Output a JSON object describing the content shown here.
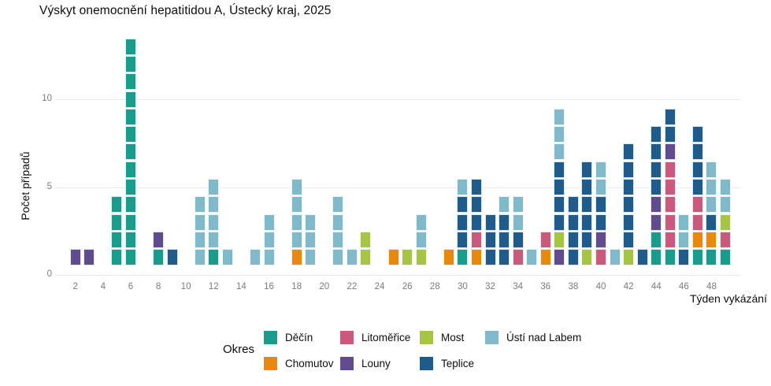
{
  "chart_data": {
    "type": "bar",
    "subtype": "stacked-unit-tile-epicurve",
    "title": "Výskyt onemocnění hepatitidou A, Ústecký kraj, 2025",
    "xlabel": "Týden vykázání",
    "ylabel": "Počet případů",
    "legend_title": "Okres",
    "y_ticks": [
      0,
      5,
      10
    ],
    "x_ticks": [
      2,
      4,
      6,
      8,
      10,
      12,
      14,
      16,
      18,
      20,
      22,
      24,
      26,
      28,
      30,
      32,
      34,
      36,
      38,
      40,
      42,
      44,
      46,
      48
    ],
    "x_range": [
      1,
      49
    ],
    "ylim": [
      0,
      13.5
    ],
    "grid": "horizontal-only",
    "legend_position": "bottom",
    "stack_order": [
      "Děčín",
      "Chomutov",
      "Litoměřice",
      "Louny",
      "Most",
      "Teplice",
      "Ústí nad Labem"
    ],
    "colors": {
      "Děčín": "#1a9c8c",
      "Chomutov": "#e8890b",
      "Litoměřice": "#ca5a7b",
      "Louny": "#614b8f",
      "Most": "#a6c544",
      "Teplice": "#1f5c8b",
      "Ústí nad Labem": "#7fb9ca"
    },
    "legend_rows": [
      [
        "Děčín",
        "Litoměřice",
        "Most",
        "Ústí nad Labem"
      ],
      [
        "Chomutov",
        "Louny",
        "Teplice"
      ]
    ],
    "weeks": [
      {
        "week": 2,
        "total": 1,
        "cases": {
          "Louny": 1
        }
      },
      {
        "week": 3,
        "total": 1,
        "cases": {
          "Louny": 1
        }
      },
      {
        "week": 5,
        "total": 4,
        "cases": {
          "Děčín": 4
        }
      },
      {
        "week": 6,
        "total": 13,
        "cases": {
          "Děčín": 13
        }
      },
      {
        "week": 8,
        "total": 2,
        "cases": {
          "Děčín": 1,
          "Louny": 1
        }
      },
      {
        "week": 9,
        "total": 1,
        "cases": {
          "Teplice": 1
        }
      },
      {
        "week": 11,
        "total": 4,
        "cases": {
          "Ústí nad Labem": 4
        }
      },
      {
        "week": 12,
        "total": 5,
        "cases": {
          "Děčín": 1,
          "Ústí nad Labem": 4
        }
      },
      {
        "week": 13,
        "total": 1,
        "cases": {
          "Ústí nad Labem": 1
        }
      },
      {
        "week": 15,
        "total": 1,
        "cases": {
          "Ústí nad Labem": 1
        }
      },
      {
        "week": 16,
        "total": 3,
        "cases": {
          "Ústí nad Labem": 3
        }
      },
      {
        "week": 18,
        "total": 5,
        "cases": {
          "Chomutov": 1,
          "Ústí nad Labem": 4
        }
      },
      {
        "week": 19,
        "total": 3,
        "cases": {
          "Ústí nad Labem": 3
        }
      },
      {
        "week": 21,
        "total": 4,
        "cases": {
          "Ústí nad Labem": 4
        }
      },
      {
        "week": 22,
        "total": 1,
        "cases": {
          "Ústí nad Labem": 1
        }
      },
      {
        "week": 23,
        "total": 2,
        "cases": {
          "Most": 2
        }
      },
      {
        "week": 25,
        "total": 1,
        "cases": {
          "Chomutov": 1
        }
      },
      {
        "week": 26,
        "total": 1,
        "cases": {
          "Most": 1
        }
      },
      {
        "week": 27,
        "total": 3,
        "cases": {
          "Most": 1,
          "Ústí nad Labem": 2
        }
      },
      {
        "week": 29,
        "total": 1,
        "cases": {
          "Chomutov": 1
        }
      },
      {
        "week": 30,
        "total": 5,
        "cases": {
          "Děčín": 1,
          "Teplice": 3,
          "Ústí nad Labem": 1
        }
      },
      {
        "week": 31,
        "total": 5,
        "cases": {
          "Chomutov": 1,
          "Litoměřice": 1,
          "Teplice": 3
        }
      },
      {
        "week": 32,
        "total": 3,
        "cases": {
          "Teplice": 3
        }
      },
      {
        "week": 33,
        "total": 4,
        "cases": {
          "Teplice": 3,
          "Ústí nad Labem": 1
        }
      },
      {
        "week": 34,
        "total": 4,
        "cases": {
          "Litoměřice": 1,
          "Teplice": 1,
          "Ústí nad Labem": 2
        }
      },
      {
        "week": 35,
        "total": 1,
        "cases": {
          "Ústí nad Labem": 1
        }
      },
      {
        "week": 36,
        "total": 2,
        "cases": {
          "Chomutov": 1,
          "Litoměřice": 1
        }
      },
      {
        "week": 37,
        "total": 9,
        "cases": {
          "Louny": 1,
          "Most": 1,
          "Teplice": 4,
          "Ústí nad Labem": 3
        }
      },
      {
        "week": 38,
        "total": 4,
        "cases": {
          "Teplice": 4
        }
      },
      {
        "week": 39,
        "total": 6,
        "cases": {
          "Most": 1,
          "Teplice": 5
        }
      },
      {
        "week": 40,
        "total": 6,
        "cases": {
          "Litoměřice": 1,
          "Louny": 1,
          "Teplice": 2,
          "Ústí nad Labem": 2
        }
      },
      {
        "week": 41,
        "total": 1,
        "cases": {
          "Ústí nad Labem": 1
        }
      },
      {
        "week": 42,
        "total": 7,
        "cases": {
          "Most": 1,
          "Teplice": 6
        }
      },
      {
        "week": 43,
        "total": 1,
        "cases": {
          "Teplice": 1
        }
      },
      {
        "week": 44,
        "total": 8,
        "cases": {
          "Děčín": 2,
          "Louny": 2,
          "Teplice": 4
        }
      },
      {
        "week": 45,
        "total": 9,
        "cases": {
          "Děčín": 1,
          "Litoměřice": 5,
          "Louny": 1,
          "Teplice": 2
        }
      },
      {
        "week": 46,
        "total": 3,
        "cases": {
          "Teplice": 1,
          "Ústí nad Labem": 2
        }
      },
      {
        "week": 47,
        "total": 8,
        "cases": {
          "Děčín": 1,
          "Chomutov": 1,
          "Litoměřice": 2,
          "Teplice": 4
        }
      },
      {
        "week": 48,
        "total": 6,
        "cases": {
          "Děčín": 1,
          "Chomutov": 1,
          "Teplice": 1,
          "Ústí nad Labem": 3
        }
      },
      {
        "week": 49,
        "total": 5,
        "cases": {
          "Děčín": 1,
          "Litoměřice": 1,
          "Most": 1,
          "Ústí nad Labem": 2
        }
      }
    ]
  }
}
